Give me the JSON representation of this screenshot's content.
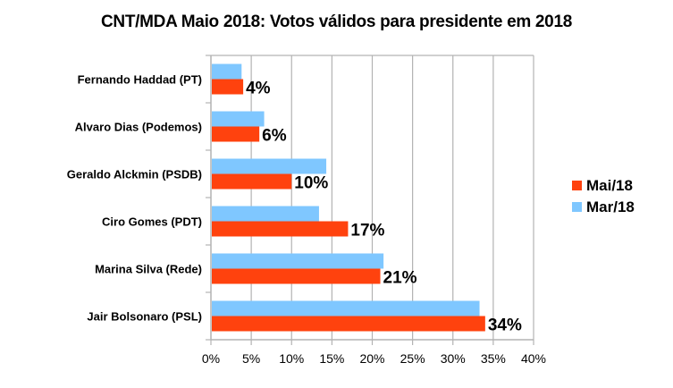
{
  "chart_data": {
    "type": "bar",
    "orientation": "horizontal",
    "title": "CNT/MDA Maio 2018: Votos válidos para presidente em 2018",
    "xlabel": "",
    "ylabel": "",
    "categories": [
      "Fernando Haddad (PT)",
      "Alvaro Dias (Podemos)",
      "Geraldo Alckmin (PSDB)",
      "Ciro Gomes (PDT)",
      "Marina Silva (Rede)",
      "Jair Bolsonaro (PSL)"
    ],
    "series": [
      {
        "name": "Mar/18",
        "color": "#7fc7ff",
        "values": [
          3.8,
          6.6,
          14.3,
          13.4,
          21.4,
          33.3
        ],
        "data_labels": null
      },
      {
        "name": "Mai/18",
        "color": "#ff420e",
        "values": [
          4,
          6,
          10,
          17,
          21,
          34
        ],
        "data_labels": [
          "4%",
          "6%",
          "10%",
          "17%",
          "21%",
          "34%"
        ]
      }
    ],
    "xlim": [
      0,
      40
    ],
    "xticks": [
      0,
      5,
      10,
      15,
      20,
      25,
      30,
      35,
      40
    ],
    "xtick_labels": [
      "0%",
      "5%",
      "10%",
      "15%",
      "20%",
      "25%",
      "30%",
      "35%",
      "40%"
    ],
    "grid": true,
    "legend": {
      "position": "right",
      "entries": [
        {
          "name": "Mai/18",
          "color": "#ff420e"
        },
        {
          "name": "Mar/18",
          "color": "#7fc7ff"
        }
      ]
    }
  }
}
